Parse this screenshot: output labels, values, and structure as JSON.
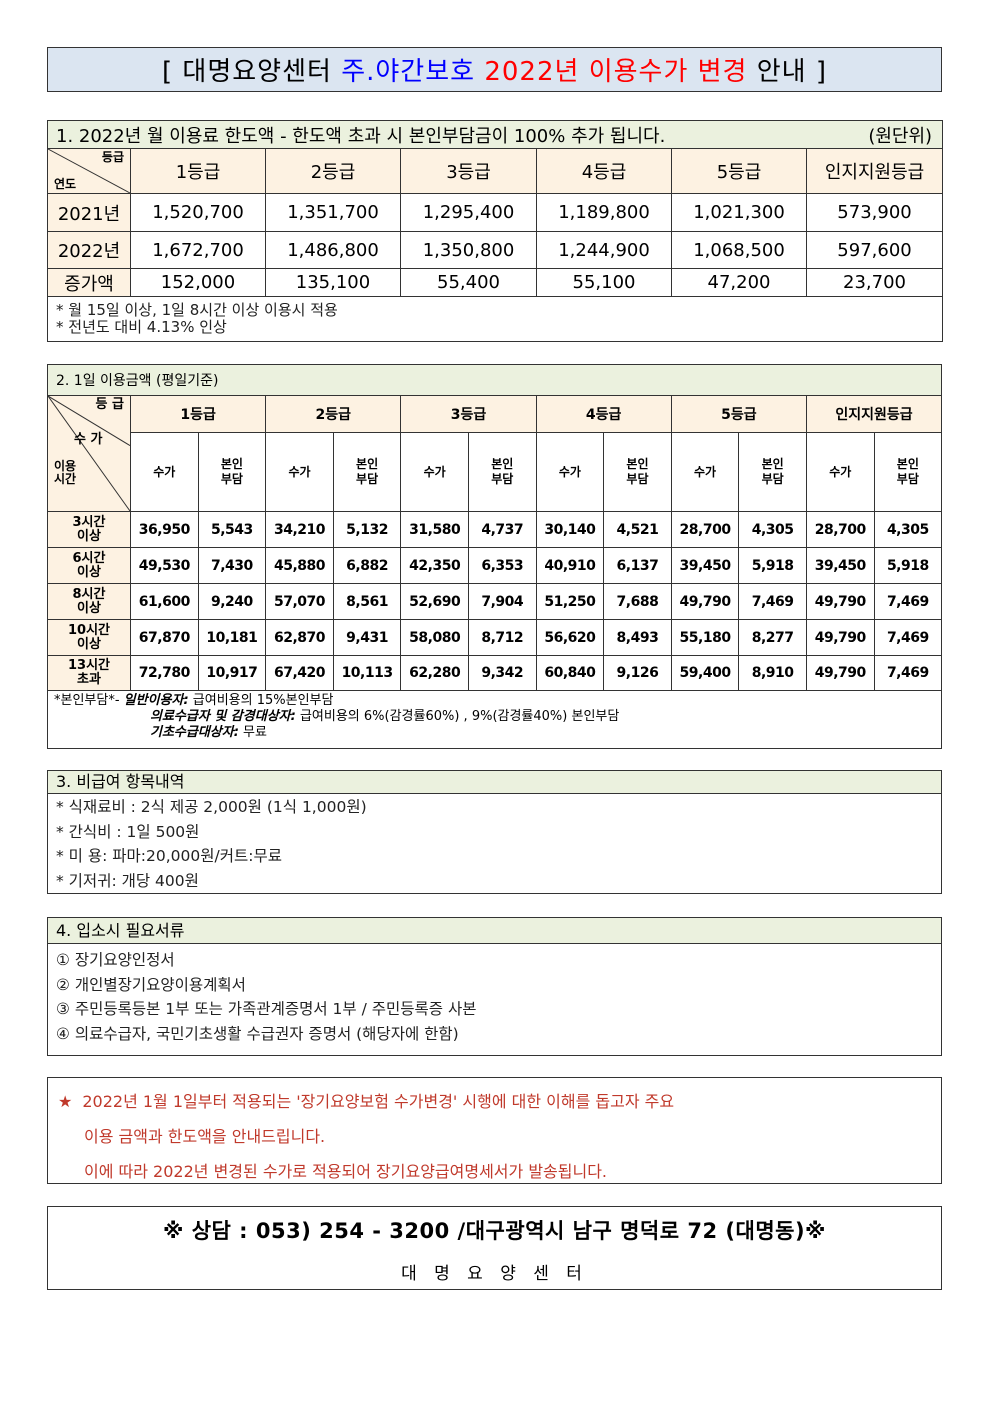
{
  "title": {
    "part1": "[ 대명요양센터 ",
    "part2": "주.야간보호 ",
    "part3": "2022년 이용수가 변경 ",
    "part4": "안내 ]",
    "colors": {
      "blue": "#0000ff",
      "red": "#ff0000",
      "background": "#dbe5f1"
    }
  },
  "section1": {
    "heading": "1. 2022년 월 이용료 한도액 - 한도액 초과 시 본인부담금이 100% 추가 됩니다.",
    "unit": "(원단위)",
    "corner_top": "등급",
    "corner_bottom": "연도",
    "grades": [
      "1등급",
      "2등급",
      "3등급",
      "4등급",
      "5등급",
      "인지지원등급"
    ],
    "rows": [
      {
        "label": "2021년",
        "values": [
          "1,520,700",
          "1,351,700",
          "1,295,400",
          "1,189,800",
          "1,021,300",
          "573,900"
        ]
      },
      {
        "label": "2022년",
        "values": [
          "1,672,700",
          "1,486,800",
          "1,350,800",
          "1,244,900",
          "1,068,500",
          "597,600"
        ]
      },
      {
        "label": "증가액",
        "values": [
          "152,000",
          "135,100",
          "55,400",
          "55,100",
          "47,200",
          "23,700"
        ]
      }
    ],
    "notes": [
      "* 월 15일 이상, 1일 8시간 이상 이용시 적용",
      "* 전년도 대비 4.13% 인상"
    ]
  },
  "section2": {
    "heading": "2. 1일 이용금액 (평일기준)",
    "corner_grade": "등 급",
    "corner_fee": "수 가",
    "corner_time": "이용\n시간",
    "grades": [
      "1등급",
      "2등급",
      "3등급",
      "4등급",
      "5등급",
      "인지지원등급"
    ],
    "sub_fee": "수가",
    "sub_self": "본인\n부담",
    "rows": [
      {
        "label": "3시간\n이상",
        "values": [
          "36,950",
          "5,543",
          "34,210",
          "5,132",
          "31,580",
          "4,737",
          "30,140",
          "4,521",
          "28,700",
          "4,305",
          "28,700",
          "4,305"
        ]
      },
      {
        "label": "6시간\n이상",
        "values": [
          "49,530",
          "7,430",
          "45,880",
          "6,882",
          "42,350",
          "6,353",
          "40,910",
          "6,137",
          "39,450",
          "5,918",
          "39,450",
          "5,918"
        ]
      },
      {
        "label": "8시간\n이상",
        "values": [
          "61,600",
          "9,240",
          "57,070",
          "8,561",
          "52,690",
          "7,904",
          "51,250",
          "7,688",
          "49,790",
          "7,469",
          "49,790",
          "7,469"
        ]
      },
      {
        "label": "10시간\n이상",
        "values": [
          "67,870",
          "10,181",
          "62,870",
          "9,431",
          "58,080",
          "8,712",
          "56,620",
          "8,493",
          "55,180",
          "8,277",
          "49,790",
          "7,469"
        ]
      },
      {
        "label": "13시간\n초과",
        "values": [
          "72,780",
          "10,917",
          "67,420",
          "10,113",
          "62,280",
          "9,342",
          "60,840",
          "9,126",
          "59,400",
          "8,910",
          "49,790",
          "7,469"
        ]
      }
    ],
    "notes": {
      "prefix": "*본인부담*- ",
      "general_label": "일반이용자:",
      "general_text": " 급여비용의 15%본인부담",
      "medical_label": "의료수급자 및 감경대상자:",
      "medical_text": " 급여비용의 6%(감경률60%) , 9%(감경률40%) 본인부담",
      "basic_label": "기초수급대상자:",
      "basic_text": " 무료"
    }
  },
  "section3": {
    "heading": "3. 비급여 항목내역",
    "items": [
      "* 식재료비 : 2식 제공 2,000원 (1식 1,000원)",
      "* 간식비 : 1일 500원",
      "* 미 용: 파마:20,000원/커트:무료",
      "* 기저귀: 개당 400원"
    ]
  },
  "section4": {
    "heading": "4. 입소시 필요서류",
    "items": [
      "① 장기요양인정서",
      "② 개인별장기요양이용계획서",
      "③ 주민등록등본 1부 또는 가족관계증명서 1부 / 주민등록증 사본",
      "④ 의료수급자, 국민기초생활 수급권자 증명서 (해당자에 한함)"
    ]
  },
  "notice": {
    "star": "★",
    "lines": [
      "2022년 1월 1일부터 적용되는 '장기요양보험 수가변경' 시행에 대한 이해를 돕고자 주요",
      "이용 금액과 한도액을 안내드립니다.",
      "이에 따라 2022년 변경된 수가로 적용되어 장기요양급여명세서가 발송됩니다."
    ],
    "color": "#c0392b"
  },
  "contact": {
    "line1": "※ 상담 : 053) 254 - 3200 /대구광역시 남구 명덕로 72 (대명동)※",
    "line2": "대 명 요 양 센 터"
  }
}
